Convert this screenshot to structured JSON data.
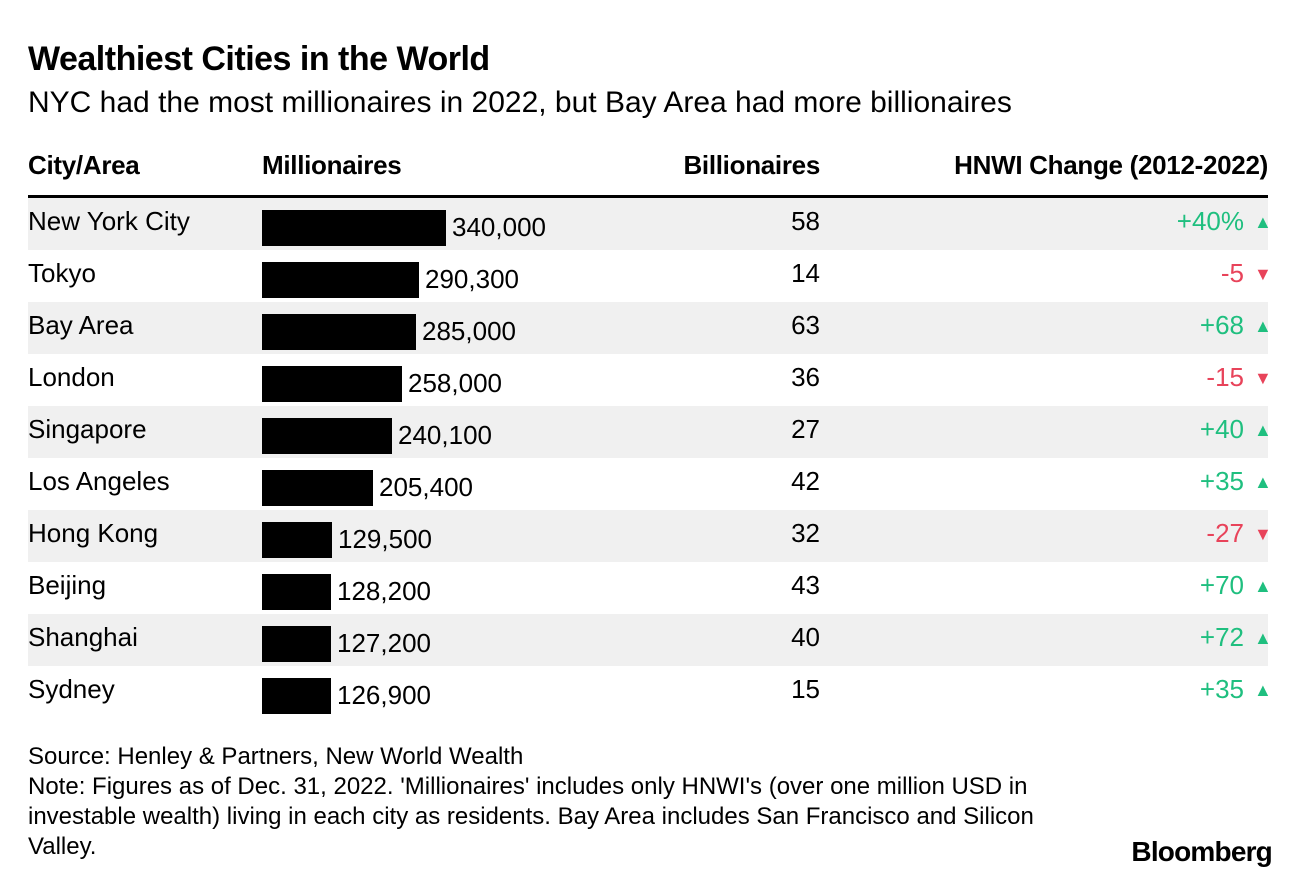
{
  "chart_data": {
    "type": "table",
    "title": "Wealthiest Cities in the World",
    "subtitle": "NYC had the most millionaires in 2022, but Bay Area had more billionaires",
    "columns": [
      "City/Area",
      "Millionaires",
      "Billionaires",
      "HNWI Change (2012-2022)"
    ],
    "rows": [
      {
        "city": "New York City",
        "millionaires": 340000,
        "millionaires_label": "340,000",
        "billionaires": "58",
        "change": 40,
        "change_label": "+40%",
        "direction": "up"
      },
      {
        "city": "Tokyo",
        "millionaires": 290300,
        "millionaires_label": "290,300",
        "billionaires": "14",
        "change": -5,
        "change_label": "-5",
        "direction": "down"
      },
      {
        "city": "Bay Area",
        "millionaires": 285000,
        "millionaires_label": "285,000",
        "billionaires": "63",
        "change": 68,
        "change_label": "+68",
        "direction": "up"
      },
      {
        "city": "London",
        "millionaires": 258000,
        "millionaires_label": "258,000",
        "billionaires": "36",
        "change": -15,
        "change_label": "-15",
        "direction": "down"
      },
      {
        "city": "Singapore",
        "millionaires": 240100,
        "millionaires_label": "240,100",
        "billionaires": "27",
        "change": 40,
        "change_label": "+40",
        "direction": "up"
      },
      {
        "city": "Los Angeles",
        "millionaires": 205400,
        "millionaires_label": "205,400",
        "billionaires": "42",
        "change": 35,
        "change_label": "+35",
        "direction": "up"
      },
      {
        "city": "Hong Kong",
        "millionaires": 129500,
        "millionaires_label": "129,500",
        "billionaires": "32",
        "change": -27,
        "change_label": "-27",
        "direction": "down"
      },
      {
        "city": "Beijing",
        "millionaires": 128200,
        "millionaires_label": "128,200",
        "billionaires": "43",
        "change": 70,
        "change_label": "+70",
        "direction": "up"
      },
      {
        "city": "Shanghai",
        "millionaires": 127200,
        "millionaires_label": "127,200",
        "billionaires": "40",
        "change": 72,
        "change_label": "+72",
        "direction": "up"
      },
      {
        "city": "Sydney",
        "millionaires": 126900,
        "millionaires_label": "126,900",
        "billionaires": "15",
        "change": 35,
        "change_label": "+35",
        "direction": "up"
      }
    ],
    "colors": {
      "bar": "#000000",
      "positive": "#1fbf7f",
      "negative": "#e8435a",
      "stripe": "#f0f0f0"
    }
  },
  "footer": {
    "source": "Source: Henley & Partners, New World Wealth",
    "note": "Note: Figures as of Dec. 31, 2022. 'Millionaires' includes only HNWI's (over one million USD in investable wealth) living in each city as residents. Bay Area includes San Francisco and Silicon Valley."
  },
  "brand": {
    "logo_text": "Bloomberg"
  }
}
